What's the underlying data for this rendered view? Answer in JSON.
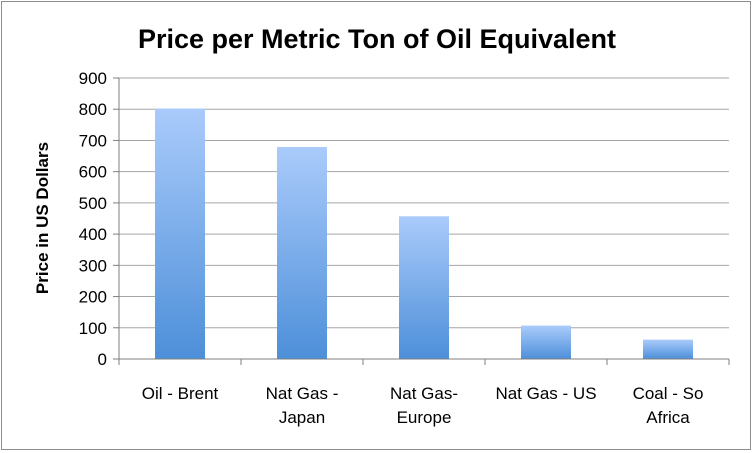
{
  "chart_data": {
    "type": "bar",
    "title": "Price per Metric Ton of Oil Equivalent",
    "xlabel": "",
    "ylabel": "Price in US Dollars",
    "categories": [
      [
        "Oil - Brent"
      ],
      [
        "Nat Gas -",
        "Japan"
      ],
      [
        "Nat Gas-",
        "Europe"
      ],
      [
        "Nat Gas - US"
      ],
      [
        "Coal - So",
        "Africa"
      ]
    ],
    "values": [
      802,
      679,
      457,
      107,
      62
    ],
    "ylim": [
      0,
      900
    ],
    "yticks": [
      "0",
      "100",
      "200",
      "300",
      "400",
      "500",
      "600",
      "700",
      "800",
      "900"
    ],
    "grid": true,
    "legend": "none",
    "colors": {
      "bar_top": "#aacbfb",
      "bar_bottom": "#4d8fd9",
      "grid": "#a6a6a6",
      "axis": "#7f7f7f"
    }
  }
}
